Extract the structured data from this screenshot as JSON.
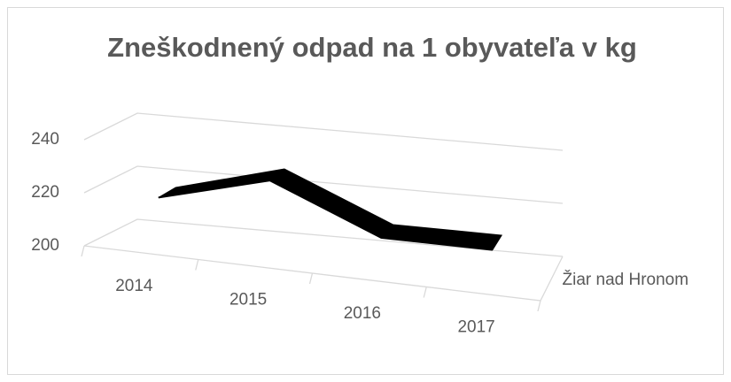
{
  "chart_data": {
    "type": "line3d",
    "title": "Zneškodnený odpad na 1 obyvateľa v kg",
    "categories": [
      "2014",
      "2015",
      "2016",
      "2017"
    ],
    "series": [
      {
        "name": "Žiar nad Hronom",
        "color": "#000000",
        "values": [
          217,
          228,
          211,
          211
        ]
      }
    ],
    "ylim": [
      200,
      240
    ],
    "yticks": [
      200,
      220,
      240
    ],
    "grid": true
  }
}
